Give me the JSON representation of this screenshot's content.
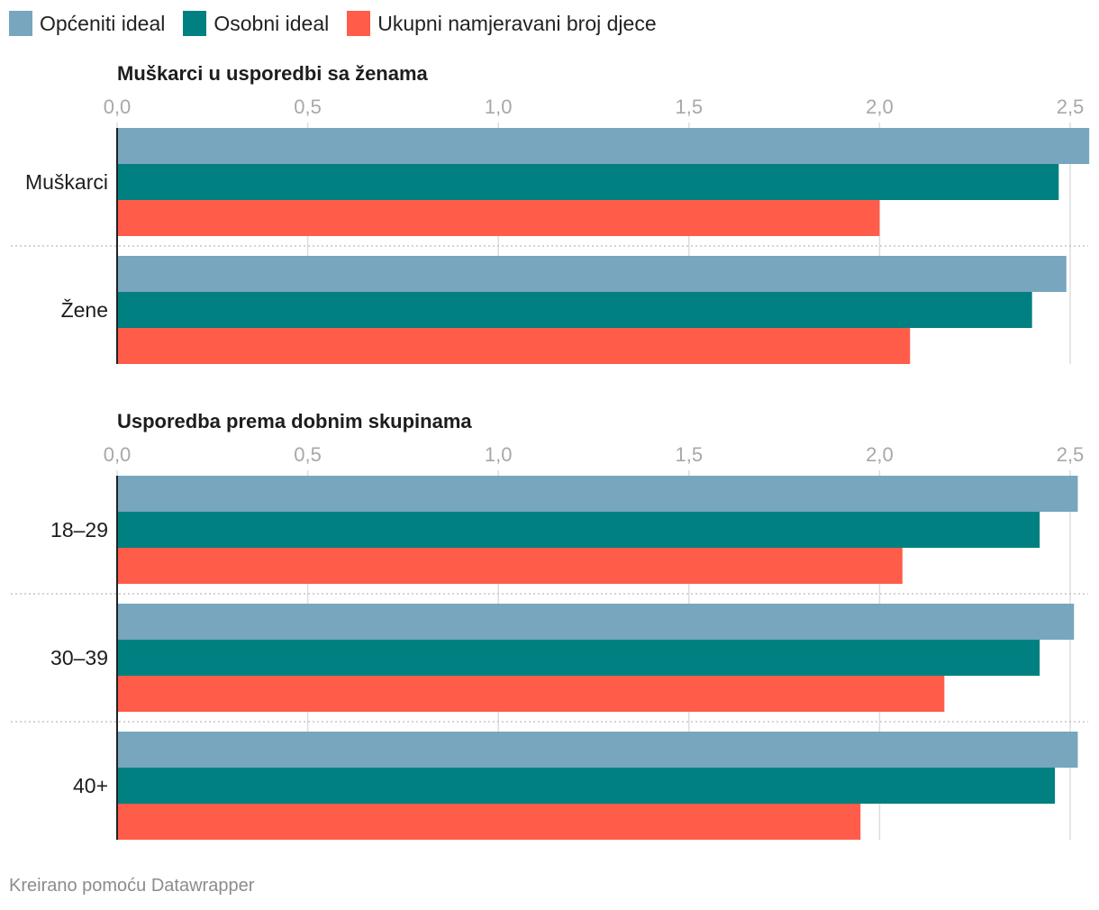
{
  "legend": [
    {
      "label": "Općeniti ideal",
      "color": "#77a6be"
    },
    {
      "label": "Osobni ideal",
      "color": "#008080"
    },
    {
      "label": "Ukupni namjeravani broj djece",
      "color": "#ff5c4a"
    }
  ],
  "chart_data": [
    {
      "type": "bar",
      "orientation": "horizontal",
      "title": "Muškarci u usporedbi sa ženama",
      "xlim": [
        0,
        2.5
      ],
      "ticks": [
        "0,0",
        "0,5",
        "1,0",
        "1,5",
        "2,0",
        "2,5"
      ],
      "categories": [
        "Muškarci",
        "Žene"
      ],
      "series": [
        {
          "name": "Općeniti ideal",
          "values": [
            2.55,
            2.49
          ]
        },
        {
          "name": "Osobni ideal",
          "values": [
            2.47,
            2.4
          ]
        },
        {
          "name": "Ukupni namjeravani broj djece",
          "values": [
            2.0,
            2.08
          ]
        }
      ]
    },
    {
      "type": "bar",
      "orientation": "horizontal",
      "title": "Usporedba prema dobnim skupinama",
      "xlim": [
        0,
        2.5
      ],
      "ticks": [
        "0,0",
        "0,5",
        "1,0",
        "1,5",
        "2,0",
        "2,5"
      ],
      "categories": [
        "18–29",
        "30–39",
        "40+"
      ],
      "series": [
        {
          "name": "Općeniti ideal",
          "values": [
            2.52,
            2.51,
            2.52
          ]
        },
        {
          "name": "Osobni ideal",
          "values": [
            2.42,
            2.42,
            2.46
          ]
        },
        {
          "name": "Ukupni namjeravani broj djece",
          "values": [
            2.06,
            2.17,
            1.95
          ]
        }
      ]
    }
  ],
  "footer": "Kreirano pomoću Datawrapper"
}
